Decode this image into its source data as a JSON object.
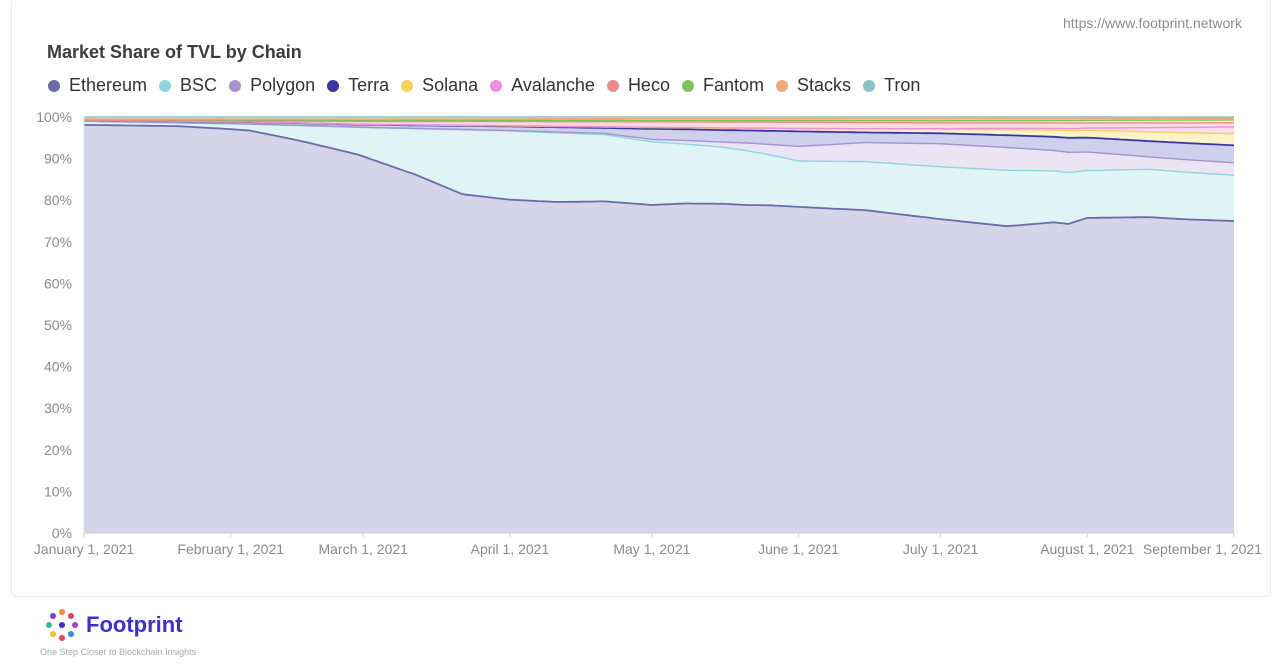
{
  "url": "https://www.footprint.network",
  "brand": {
    "name": "Footprint",
    "tagline": "One Step Closer to Blockchain Insights",
    "color": "#3b2fd9"
  },
  "watermark": "Footprint",
  "chart_data": {
    "type": "area",
    "title": "Market Share of TVL by Chain",
    "stacked": true,
    "percent": true,
    "ylim": [
      0,
      100
    ],
    "yticks": [
      "0%",
      "10%",
      "20%",
      "30%",
      "40%",
      "50%",
      "60%",
      "70%",
      "80%",
      "90%",
      "100%"
    ],
    "x_ticks": [
      "January 1, 2021",
      "February 1, 2021",
      "March 1, 2021",
      "April 1, 2021",
      "May 1, 2021",
      "June 1, 2021",
      "July 1, 2021",
      "August 1, 2021",
      "September 1, 2021"
    ],
    "x_tick_days": [
      0,
      31,
      59,
      90,
      120,
      151,
      181,
      212,
      243
    ],
    "xlim_days": [
      0,
      243
    ],
    "legend_position": "top",
    "series": [
      {
        "name": "Ethereum",
        "color": "#6b6bab",
        "fill": "#d6d4e8",
        "points": [
          [
            0,
            97.8
          ],
          [
            5,
            98.5
          ],
          [
            10,
            98.4
          ],
          [
            20,
            98.6
          ],
          [
            30,
            98.8
          ],
          [
            35,
            96
          ],
          [
            45,
            94.5
          ],
          [
            55,
            91
          ],
          [
            62,
            88.5
          ],
          [
            70,
            86
          ],
          [
            80,
            81.5
          ],
          [
            90,
            80
          ],
          [
            100,
            79
          ],
          [
            110,
            79.5
          ],
          [
            120,
            78
          ],
          [
            127,
            79.3
          ],
          [
            135,
            78.5
          ],
          [
            145,
            78.6
          ],
          [
            151,
            78.2
          ],
          [
            160,
            77
          ],
          [
            170,
            76
          ],
          [
            181,
            75
          ],
          [
            195,
            74
          ],
          [
            205,
            74.5
          ],
          [
            208,
            72
          ],
          [
            212,
            76.5
          ],
          [
            225,
            76
          ],
          [
            233,
            75
          ],
          [
            243,
            75
          ]
        ]
      },
      {
        "name": "BSC",
        "color": "#8fd5dc",
        "fill": "#e0f4f6",
        "points": [
          [
            0,
            0.9
          ],
          [
            20,
            0.8
          ],
          [
            35,
            1.5
          ],
          [
            45,
            3.5
          ],
          [
            58,
            6.5
          ],
          [
            70,
            11
          ],
          [
            80,
            15.5
          ],
          [
            90,
            16.5
          ],
          [
            100,
            16.5
          ],
          [
            110,
            16
          ],
          [
            120,
            15
          ],
          [
            130,
            14
          ],
          [
            140,
            13
          ],
          [
            151,
            11
          ],
          [
            165,
            11.5
          ],
          [
            181,
            12.5
          ],
          [
            195,
            13.5
          ],
          [
            212,
            11.5
          ],
          [
            225,
            11.5
          ],
          [
            243,
            11
          ]
        ]
      },
      {
        "name": "Polygon",
        "color": "#a593cf",
        "fill": "#ebe4f4",
        "points": [
          [
            0,
            0
          ],
          [
            90,
            0.1
          ],
          [
            110,
            0.3
          ],
          [
            120,
            0.6
          ],
          [
            135,
            1.2
          ],
          [
            145,
            2.5
          ],
          [
            151,
            3.5
          ],
          [
            165,
            4.5
          ],
          [
            181,
            5.5
          ],
          [
            195,
            5.5
          ],
          [
            212,
            4.5
          ],
          [
            225,
            3
          ],
          [
            243,
            3
          ]
        ]
      },
      {
        "name": "Terra",
        "color": "#3838a5",
        "fill": "#cfcfee",
        "points": [
          [
            0,
            0.3
          ],
          [
            60,
            0.6
          ],
          [
            90,
            1
          ],
          [
            110,
            1.3
          ],
          [
            120,
            2.5
          ],
          [
            140,
            3
          ],
          [
            151,
            3.6
          ],
          [
            165,
            2.4
          ],
          [
            181,
            2.5
          ],
          [
            212,
            3.5
          ],
          [
            243,
            4.2
          ]
        ]
      },
      {
        "name": "Solana",
        "color": "#f3d35a",
        "fill": "#fbf2c8",
        "points": [
          [
            0,
            0
          ],
          [
            90,
            0.1
          ],
          [
            120,
            0.3
          ],
          [
            150,
            0.6
          ],
          [
            181,
            1
          ],
          [
            212,
            1.8
          ],
          [
            243,
            2.8
          ]
        ]
      },
      {
        "name": "Avalanche",
        "color": "#ec8fdd",
        "fill": "#f8dcf3",
        "points": [
          [
            0,
            0
          ],
          [
            181,
            0.1
          ],
          [
            212,
            0.5
          ],
          [
            225,
            1
          ],
          [
            243,
            1.6
          ]
        ]
      },
      {
        "name": "Heco",
        "color": "#ec8a8a",
        "fill": "#f9dcdc",
        "points": [
          [
            0,
            0
          ],
          [
            35,
            0.2
          ],
          [
            60,
            0.7
          ],
          [
            90,
            1
          ],
          [
            120,
            1.3
          ],
          [
            151,
            1.5
          ],
          [
            181,
            1.4
          ],
          [
            212,
            1.3
          ],
          [
            243,
            1
          ]
        ]
      },
      {
        "name": "Fantom",
        "color": "#7dc15c",
        "fill": "#e4f2d9",
        "points": [
          [
            0,
            0.2
          ],
          [
            90,
            0.3
          ],
          [
            151,
            0.4
          ],
          [
            212,
            0.6
          ],
          [
            243,
            0.7
          ]
        ]
      },
      {
        "name": "Stacks",
        "color": "#f0a978",
        "fill": "#fbe3d2",
        "points": [
          [
            0,
            0
          ],
          [
            30,
            0.2
          ],
          [
            60,
            0.3
          ],
          [
            120,
            0.4
          ],
          [
            181,
            0.5
          ],
          [
            243,
            0.4
          ]
        ]
      },
      {
        "name": "Tron",
        "color": "#8cc2c2",
        "fill": "#e0efef",
        "points": [
          [
            0,
            0.5
          ],
          [
            60,
            0.5
          ],
          [
            120,
            0.4
          ],
          [
            181,
            0.4
          ],
          [
            243,
            0.3
          ]
        ]
      }
    ]
  }
}
